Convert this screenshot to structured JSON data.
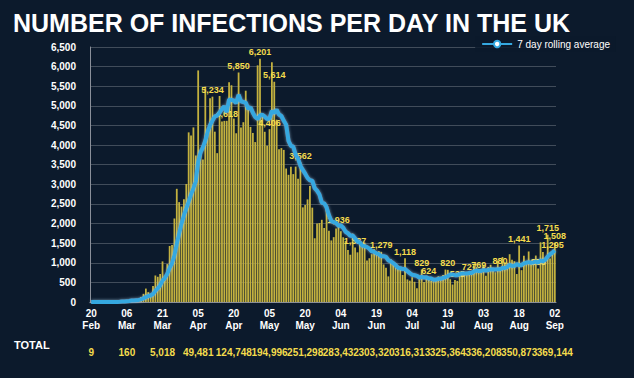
{
  "chart_data": {
    "type": "bar",
    "title": "NUMBER OF INFECTIONS PER DAY IN THE UK",
    "categories": [
      "20 Feb",
      null,
      null,
      null,
      null,
      null,
      null,
      null,
      null,
      null,
      null,
      null,
      null,
      null,
      null,
      "06 Mar",
      null,
      null,
      null,
      null,
      null,
      null,
      null,
      null,
      null,
      null,
      null,
      null,
      null,
      null,
      "21 Mar",
      null,
      null,
      null,
      null,
      null,
      null,
      null,
      null,
      null,
      null,
      null,
      null,
      null,
      null,
      "05 Apr",
      null,
      null,
      null,
      null,
      null,
      null,
      null,
      null,
      null,
      null,
      null,
      null,
      null,
      null,
      "20 Apr",
      null,
      null,
      null,
      null,
      null,
      null,
      null,
      null,
      null,
      null,
      null,
      null,
      null,
      null,
      "05 May",
      null,
      null,
      null,
      null,
      null,
      null,
      null,
      null,
      null,
      null,
      null,
      null,
      null,
      null,
      "20 May",
      null,
      null,
      null,
      null,
      null,
      null,
      null,
      null,
      null,
      null,
      null,
      null,
      null,
      null,
      "04 Jun",
      null,
      null,
      null,
      null,
      null,
      null,
      null,
      null,
      null,
      null,
      null,
      null,
      null,
      null,
      "19 Jun",
      null,
      null,
      null,
      null,
      null,
      null,
      null,
      null,
      null,
      null,
      null,
      null,
      null,
      null,
      "04 Jul",
      null,
      null,
      null,
      null,
      null,
      null,
      null,
      null,
      null,
      null,
      null,
      null,
      null,
      null,
      "19 Jul",
      null,
      null,
      null,
      null,
      null,
      null,
      null,
      null,
      null,
      null,
      null,
      null,
      null,
      null,
      "03 Aug",
      null,
      null,
      null,
      null,
      null,
      null,
      null,
      null,
      null,
      null,
      null,
      null,
      null,
      null,
      "18 Aug",
      null,
      null,
      null,
      null,
      null,
      null,
      null,
      null,
      null,
      null,
      null,
      null,
      null,
      null,
      "02 Sep"
    ],
    "series": [
      {
        "type": "bar",
        "color": "#c4b23f",
        "values": [
          0,
          0,
          0,
          0,
          0,
          0,
          0,
          2,
          4,
          3,
          12,
          4,
          11,
          34,
          29,
          48,
          45,
          69,
          43,
          62,
          77,
          130,
          208,
          342,
          251,
          152,
          407,
          676,
          643,
          714,
          1035,
          665,
          967,
          1427,
          1452,
          2129,
          2885,
          2546,
          2433,
          2619,
          3009,
          4324,
          4244,
          4450,
          3735,
          5903,
          3802,
          3634,
          5491,
          4344,
          5195,
          5234,
          4342,
          3794,
          5252,
          4603,
          4617,
          4618,
          5599,
          5525,
          4676,
          4301,
          5850,
          4451,
          4583,
          5386,
          4913,
          4463,
          4309,
          4076,
          6032,
          6201,
          4806,
          4339,
          3985,
          4406,
          6111,
          5614,
          4649,
          3896,
          3923,
          3877,
          3403,
          3242,
          3446,
          3260,
          3451,
          3142,
          3562,
          2412,
          2472,
          2615,
          2959,
          2405,
          1625,
          2004,
          2013,
          2095,
          1887,
          2445,
          1815,
          1570,
          1653,
          1871,
          1936,
          1805,
          1650,
          1557,
          1326,
          1205,
          1741,
          1387,
          1266,
          1541,
          1425,
          1514,
          1056,
          1115,
          1218,
          1346,
          1218,
          1295,
          1279,
          958,
          874,
          653,
          1088,
          1006,
          890,
          901,
          815,
          689,
          1118,
          576,
          544,
          630,
          516,
          352,
          581,
          829,
          512,
          650,
          624,
          536,
          530,
          598,
          654,
          642,
          687,
          827,
          820,
          580,
          445,
          560,
          538,
          767,
          789,
          767,
          685,
          727,
          763,
          846,
          891,
          769,
          744,
          938,
          670,
          892,
          950,
          871,
          758,
          1062,
          880,
          1148,
          1009,
          1002,
          1218,
          1074,
          1040,
          713,
          1441,
          812,
          1182,
          1033,
          1288,
          1040,
          1041,
          1184,
          853,
          1522,
          1276,
          1108,
          1715,
          1108,
          1295,
          1508
        ],
        "value_labels": [
          null,
          null,
          null,
          null,
          null,
          null,
          null,
          null,
          null,
          null,
          null,
          null,
          null,
          null,
          null,
          null,
          null,
          null,
          null,
          null,
          null,
          null,
          null,
          null,
          null,
          null,
          null,
          null,
          null,
          null,
          null,
          null,
          null,
          null,
          null,
          null,
          null,
          null,
          null,
          null,
          null,
          null,
          null,
          null,
          null,
          null,
          null,
          null,
          null,
          null,
          null,
          "5,234",
          null,
          null,
          null,
          null,
          null,
          "4,618",
          null,
          null,
          null,
          null,
          "5,850",
          null,
          null,
          null,
          null,
          null,
          null,
          null,
          null,
          "6,201",
          null,
          null,
          null,
          "4,406",
          null,
          "5,614",
          null,
          null,
          null,
          null,
          null,
          null,
          null,
          null,
          null,
          null,
          "3,562",
          null,
          null,
          null,
          null,
          null,
          null,
          null,
          null,
          null,
          null,
          null,
          null,
          null,
          null,
          null,
          "1,936",
          null,
          null,
          null,
          null,
          null,
          null,
          "1,387",
          null,
          null,
          null,
          null,
          null,
          null,
          null,
          null,
          null,
          null,
          "1,279",
          null,
          null,
          null,
          null,
          null,
          null,
          null,
          null,
          null,
          "1,118",
          null,
          null,
          null,
          null,
          null,
          null,
          "829",
          null,
          null,
          "624",
          null,
          null,
          null,
          null,
          null,
          null,
          null,
          "820",
          null,
          null,
          null,
          "538",
          null,
          null,
          null,
          null,
          "727",
          null,
          null,
          null,
          "769",
          null,
          null,
          null,
          null,
          null,
          null,
          null,
          null,
          "880",
          null,
          null,
          null,
          null,
          null,
          null,
          null,
          "1,441",
          null,
          null,
          null,
          null,
          null,
          null,
          null,
          "853",
          null,
          null,
          null,
          "1,715",
          null,
          "1,295",
          "1,508"
        ]
      },
      {
        "name": "7 day rolling average",
        "type": "line",
        "color": "#35a8e0",
        "values": [
          0,
          0,
          0,
          0,
          0,
          0,
          1,
          1,
          1,
          1,
          3,
          3,
          5,
          10,
          14,
          20,
          26,
          36,
          41,
          47,
          53,
          68,
          90,
          125,
          153,
          167,
          205,
          284,
          346,
          426,
          544,
          612,
          713,
          867,
          987,
          1192,
          1476,
          1745,
          1997,
          2210,
          2383,
          2560,
          2742,
          2902,
          3076,
          3575,
          3813,
          3942,
          4109,
          4342,
          4505,
          4625,
          4731,
          4752,
          4826,
          4920,
          4990,
          4837,
          5166,
          5152,
          5130,
          5068,
          5284,
          5115,
          5099,
          5083,
          4925,
          4963,
          4823,
          4715,
          4664,
          4756,
          4775,
          4725,
          4665,
          4668,
          4871,
          4816,
          4901,
          4779,
          4741,
          4619,
          4517,
          4108,
          3981,
          3958,
          3753,
          3652,
          3474,
          3367,
          3271,
          3164,
          3101,
          3092,
          2904,
          2840,
          2741,
          2533,
          2515,
          2413,
          2209,
          2064,
          2038,
          2010,
          1943,
          1951,
          1893,
          1792,
          1754,
          1685,
          1694,
          1617,
          1542,
          1519,
          1437,
          1422,
          1398,
          1361,
          1291,
          1277,
          1238,
          1218,
          1164,
          1169,
          1151,
          1061,
          1037,
          993,
          941,
          874,
          864,
          840,
          843,
          786,
          736,
          694,
          680,
          666,
          622,
          637,
          627,
          628,
          597,
          599,
          569,
          570,
          591,
          590,
          616,
          630,
          657,
          700,
          698,
          684,
          681,
          711,
          730,
          729,
          725,
          743,
          739,
          780,
          802,
          789,
          793,
          814,
          800,
          816,
          833,
          830,
          828,
          838,
          833,
          868,
          869,
          891,
          953,
          918,
          922,
          965,
          939,
          938,
          984,
          1001,
          1016,
          1000,
          1008,
          1028,
          1006,
          1061,
          1038,
          1077,
          1156,
          1213,
          1260,
          1320
        ]
      }
    ],
    "totals": {
      "label": "TOTAL",
      "values": [
        9,
        160,
        5018,
        49481,
        124748,
        194996,
        251298,
        283432,
        303320,
        316313,
        325364,
        336208,
        350873,
        369144
      ],
      "value_labels": [
        "9",
        "160",
        "5,018",
        "49,481",
        "124,748",
        "194,996",
        "251,298",
        "283,432",
        "303,320",
        "316,313",
        "325,364",
        "336,208",
        "350,873",
        "369,144"
      ]
    },
    "ylim": [
      0,
      6500
    ],
    "yticks": [
      0,
      500,
      {
        "value": 1000,
        "label": "1,000"
      },
      {
        "value": 1500,
        "label": "1,500"
      },
      {
        "value": 2000,
        "label": "2,000"
      },
      {
        "value": 2500,
        "label": "2,500"
      },
      {
        "value": 3000,
        "label": "3,000"
      },
      {
        "value": 3500,
        "label": "3,500"
      },
      {
        "value": 4000,
        "label": "4,000"
      },
      {
        "value": 4500,
        "label": "4,500"
      },
      {
        "value": 5000,
        "label": "5,000"
      },
      {
        "value": 5500,
        "label": "5,500"
      },
      {
        "value": 6000,
        "label": "6,000"
      },
      {
        "value": 6500,
        "label": "6,500"
      }
    ],
    "grid": true,
    "legend": "top-right"
  }
}
